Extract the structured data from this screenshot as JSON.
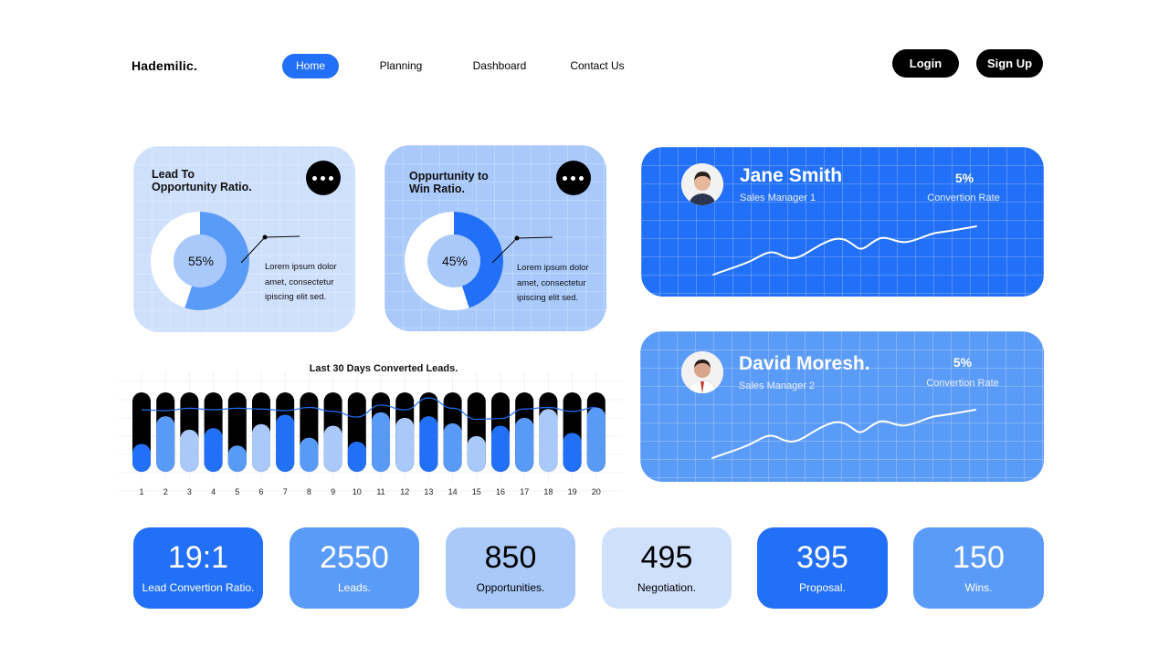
{
  "header": {
    "brand": "Hademilic.",
    "nav": [
      {
        "label": "Home",
        "active": true
      },
      {
        "label": "Planning",
        "active": false
      },
      {
        "label": "Dashboard",
        "active": false
      },
      {
        "label": "Contact Us",
        "active": false
      }
    ],
    "login_label": "Login",
    "signup_label": "Sign Up"
  },
  "ratio_cards": [
    {
      "title_line1": "Lead To",
      "title_line2": "Opportunity Ratio.",
      "percent_label": "55%",
      "percent": 55,
      "lorem_lines": [
        "Lorem ipsum dolor",
        "amet, consectetur",
        "ipiscing elit sed."
      ]
    },
    {
      "title_line1": "Oppurtunity to",
      "title_line2": "Win Ratio.",
      "percent_label": "45%",
      "percent": 45,
      "lorem_lines": [
        "Lorem ipsum dolor",
        "amet, consectetur",
        "ipiscing elit sed."
      ]
    }
  ],
  "people": [
    {
      "name": "Jane Smith",
      "role": "Sales Manager 1",
      "rate": "5%",
      "rate_label": "Convertion Rate"
    },
    {
      "name": "David Moresh.",
      "role": "Sales Manager 2",
      "rate": "5%",
      "rate_label": "Convertion Rate"
    }
  ],
  "chart_data": {
    "type": "bar",
    "title": "Last 30 Days Converted Leads.",
    "categories": [
      "1",
      "2",
      "3",
      "4",
      "5",
      "6",
      "7",
      "8",
      "9",
      "10",
      "11",
      "12",
      "13",
      "14",
      "15",
      "16",
      "17",
      "18",
      "19",
      "20"
    ],
    "series": [
      {
        "values": [
          35,
          70,
          53,
          55,
          33,
          60,
          72,
          43,
          58,
          38,
          75,
          68,
          70,
          61,
          45,
          58,
          68,
          79,
          49,
          81
        ]
      }
    ],
    "trend": [
      78,
      77,
      80,
      78,
      80,
      79,
      77,
      81,
      76,
      69,
      84,
      78,
      93,
      80,
      66,
      67,
      79,
      81,
      76,
      81
    ],
    "ylim": [
      0,
      100
    ],
    "colors": {
      "track": "#000000",
      "fills": [
        "#2270f7",
        "#5a9af7",
        "#a9c9fb"
      ],
      "trend": "#2270f7"
    }
  },
  "stats": [
    {
      "value": "19:1",
      "label": "Lead Convertion Ratio."
    },
    {
      "value": "2550",
      "label": "Leads."
    },
    {
      "value": "850",
      "label": "Opportunities."
    },
    {
      "value": "495",
      "label": "Negotiation."
    },
    {
      "value": "395",
      "label": "Proposal."
    },
    {
      "value": "150",
      "label": "Wins."
    }
  ],
  "colors": {
    "primary": "#2270f7",
    "medium": "#5b9bf8",
    "light": "#a9c9fb",
    "pale": "#cfe0fd"
  }
}
